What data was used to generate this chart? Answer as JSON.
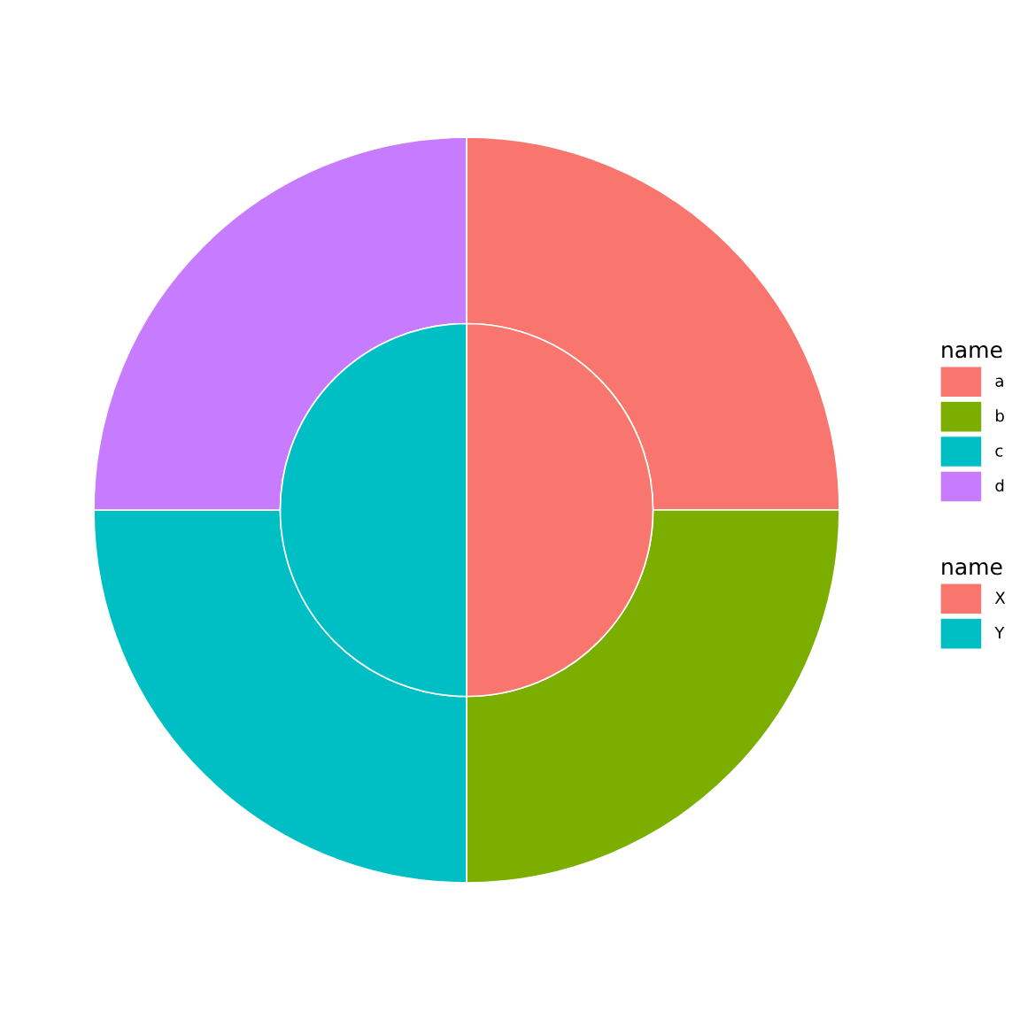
{
  "chart_data": {
    "type": "donut",
    "legend": "right",
    "categories": [
      "a",
      "b",
      "c",
      "d",
      "X",
      "Y"
    ],
    "series": [
      {
        "name": "name",
        "values": [
          25,
          25,
          25,
          25,
          null,
          null
        ],
        "colors": [
          "#f8766d",
          "#7cae00",
          "#00bfc4",
          "#c77cff",
          null,
          null
        ]
      },
      {
        "name": "name",
        "type": "pie",
        "values": [
          null,
          null,
          null,
          null,
          50,
          50
        ],
        "colors": [
          null,
          null,
          null,
          null,
          "#f8766d",
          "#00bfc4"
        ]
      }
    ]
  }
}
